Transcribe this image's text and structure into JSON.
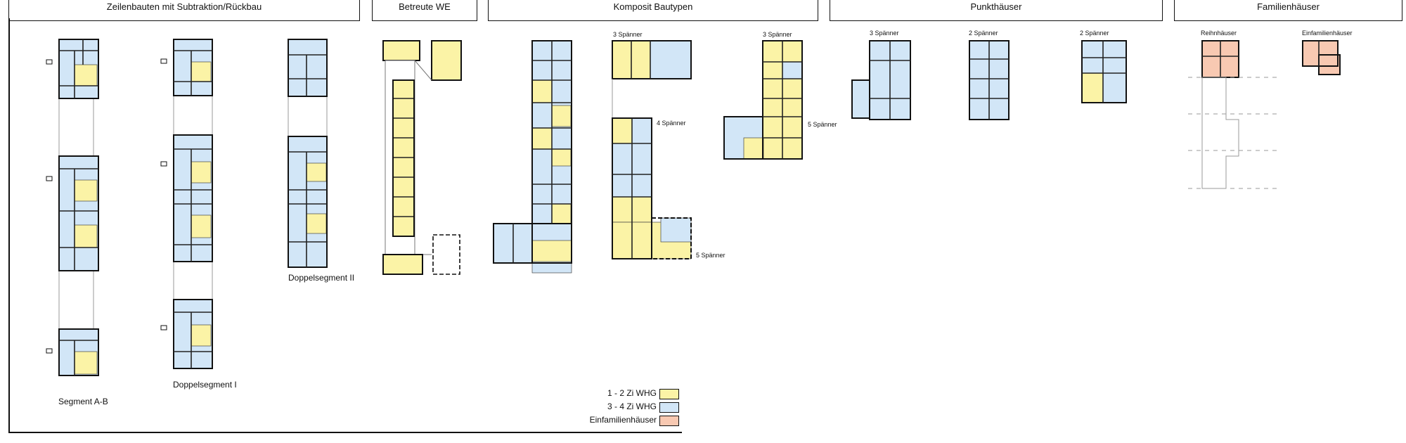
{
  "colors": {
    "yellow": "#fbf3a6",
    "blue": "#d2e6f7",
    "salmon": "#f8c9b2",
    "grey_outline": "#9a9a9a"
  },
  "categories": [
    {
      "label": "Zeilenbauten mit Subtraktion/Rückbau"
    },
    {
      "label": "Betreute WE"
    },
    {
      "label": "Komposit Bautypen"
    },
    {
      "label": "Punkthäuser"
    },
    {
      "label": "Familienhäuser"
    }
  ],
  "labels": {
    "segment_ab": "Segment A-B",
    "doppelsegment_1": "Doppelsegment I",
    "doppelsegment_2": "Doppelsegment II",
    "k_3spaenner_a": "3 Spänner",
    "k_3spaenner_b": "3 Spänner",
    "k_4spaenner": "4 Spänner",
    "k_5spaenner_a": "5 Spänner",
    "k_5spaenner_b": "5 Spänner",
    "p_3spaenner": "3 Spänner",
    "p_2spaenner_a": "2 Spänner",
    "p_2spaenner_b": "2 Spänner",
    "reihhaeuser": "Reihnhäuser",
    "einfamilienhaeuser_small": "Einfamilienhäuser"
  },
  "legend": [
    {
      "label": "1 - 2 Zi WHG",
      "color": "#fbf3a6"
    },
    {
      "label": "3 - 4 Zi WHG",
      "color": "#d2e6f7"
    },
    {
      "label": "Einfamilienhäuser",
      "color": "#f8c9b2"
    }
  ]
}
